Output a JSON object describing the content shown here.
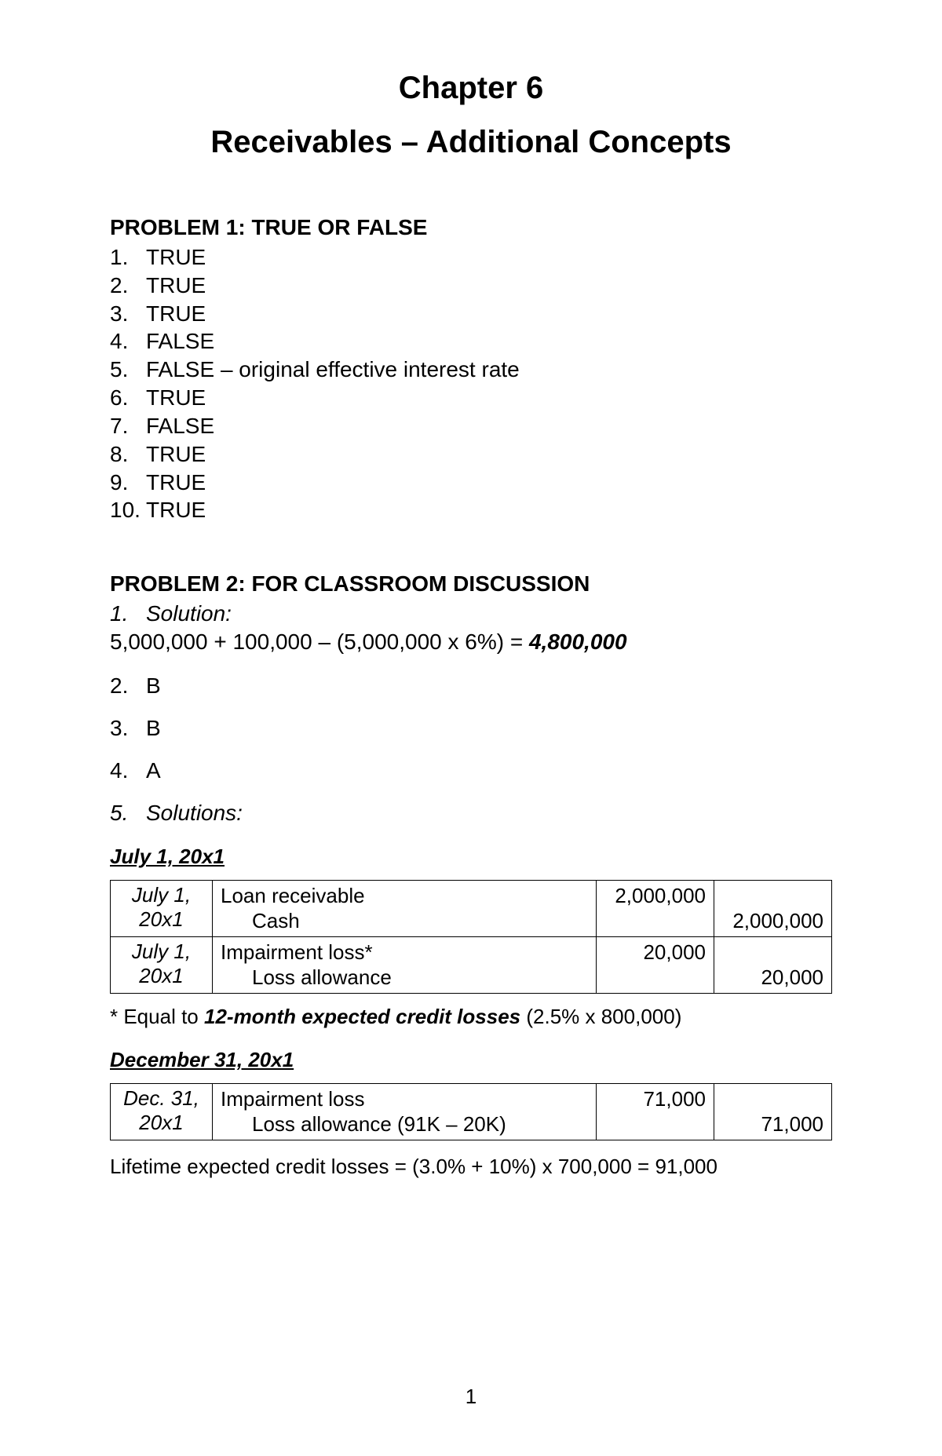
{
  "chapter": {
    "title": "Chapter 6",
    "subtitle": "Receivables – Additional Concepts"
  },
  "problem1": {
    "header": "PROBLEM 1: TRUE OR FALSE",
    "items": [
      {
        "num": "1.",
        "ans": "TRUE"
      },
      {
        "num": "2.",
        "ans": "TRUE"
      },
      {
        "num": "3.",
        "ans": "TRUE"
      },
      {
        "num": "4.",
        "ans": "FALSE"
      },
      {
        "num": "5.",
        "ans": "FALSE – original effective interest rate"
      },
      {
        "num": "6.",
        "ans": "TRUE"
      },
      {
        "num": "7.",
        "ans": "FALSE"
      },
      {
        "num": "8.",
        "ans": "TRUE"
      },
      {
        "num": "9.",
        "ans": "TRUE"
      },
      {
        "num": "10.",
        "ans": "TRUE"
      }
    ]
  },
  "problem2": {
    "header": "PROBLEM 2: FOR CLASSROOM DISCUSSION",
    "q1": {
      "num": "1.",
      "label": "Solution:",
      "line": "5,000,000 + 100,000 – (5,000,000 x 6%) = ",
      "answer": "4,800,000"
    },
    "q2": {
      "num": "2.",
      "ans": "B"
    },
    "q3": {
      "num": "3.",
      "ans": "B"
    },
    "q4": {
      "num": "4.",
      "ans": "A"
    },
    "q5": {
      "num": "5.",
      "label": "Solutions:"
    }
  },
  "date1": "July 1, 20x1",
  "table1": {
    "r1": {
      "date_l1": "July 1,",
      "date_l2": "20x1",
      "acc1": "Loan receivable",
      "acc2": "Cash",
      "debit": "2,000,000",
      "credit": "2,000,000"
    },
    "r2": {
      "date_l1": "July 1,",
      "date_l2": "20x1",
      "acc1": "Impairment loss*",
      "acc2": "Loss allowance",
      "debit": "20,000",
      "credit": "20,000"
    }
  },
  "footnote1": {
    "prefix": "* Equal to ",
    "bold": "12-month expected credit losses",
    "suffix": " (2.5% x 800,000)"
  },
  "date2": "December 31, 20x1",
  "table2": {
    "r1": {
      "date_l1": "Dec. 31,",
      "date_l2": "20x1",
      "acc1": "Impairment loss",
      "acc2": "Loss allowance (91K – 20K)",
      "debit": "71,000",
      "credit": "71,000"
    }
  },
  "final": "Lifetime expected credit losses = (3.0% + 10%) x 700,000 = 91,000",
  "pageNumber": "1"
}
